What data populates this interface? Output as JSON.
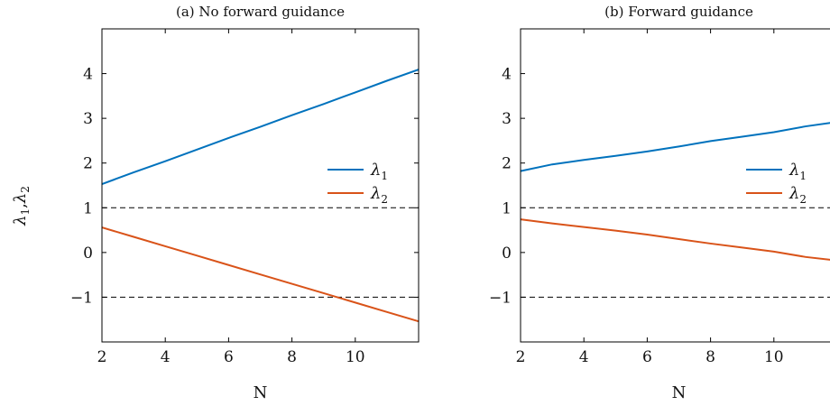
{
  "shared": {
    "ylabel": "λ1,λ2",
    "ylabel_parts": {
      "base1": "λ",
      "sub1": "1",
      "sep": ",",
      "base2": "λ",
      "sub2": "2"
    }
  },
  "chart_data": [
    {
      "type": "line",
      "title": "(a) No forward guidance",
      "xlabel": "N",
      "ylabel": "λ1,λ2",
      "xlim": [
        2,
        12
      ],
      "ylim": [
        -2,
        5
      ],
      "xticks": [
        2,
        4,
        6,
        8,
        10
      ],
      "yticks": [
        -1,
        0,
        1,
        2,
        3,
        4
      ],
      "reference_lines": [
        1,
        -1
      ],
      "legend_position": "right",
      "x": [
        2,
        3,
        4,
        5,
        6,
        7,
        8,
        9,
        10,
        11,
        12
      ],
      "series": [
        {
          "name": "λ1",
          "name_base": "λ",
          "name_sub": "1",
          "color": "#0072BD",
          "values": [
            1.53,
            1.79,
            2.04,
            2.3,
            2.56,
            2.81,
            3.07,
            3.32,
            3.58,
            3.84,
            4.09
          ]
        },
        {
          "name": "λ2",
          "name_base": "λ",
          "name_sub": "2",
          "color": "#D95319",
          "values": [
            0.56,
            0.35,
            0.14,
            -0.07,
            -0.28,
            -0.49,
            -0.7,
            -0.91,
            -1.12,
            -1.33,
            -1.54
          ]
        }
      ]
    },
    {
      "type": "line",
      "title": "(b) Forward guidance",
      "xlabel": "N",
      "ylabel": "",
      "xlim": [
        2,
        12
      ],
      "ylim": [
        -2,
        5
      ],
      "xticks": [
        2,
        4,
        6,
        8,
        10
      ],
      "yticks": [
        -1,
        0,
        1,
        2,
        3,
        4
      ],
      "reference_lines": [
        1,
        -1
      ],
      "legend_position": "right",
      "x": [
        2,
        3,
        4,
        5,
        6,
        7,
        8,
        9,
        10,
        11,
        12
      ],
      "series": [
        {
          "name": "λ1",
          "name_base": "λ",
          "name_sub": "1",
          "color": "#0072BD",
          "values": [
            1.82,
            1.97,
            2.07,
            2.16,
            2.26,
            2.37,
            2.49,
            2.59,
            2.69,
            2.82,
            2.92
          ]
        },
        {
          "name": "λ2",
          "name_base": "λ",
          "name_sub": "2",
          "color": "#D95319",
          "values": [
            0.74,
            0.65,
            0.57,
            0.49,
            0.4,
            0.3,
            0.2,
            0.11,
            0.02,
            -0.1,
            -0.18
          ]
        }
      ]
    }
  ]
}
